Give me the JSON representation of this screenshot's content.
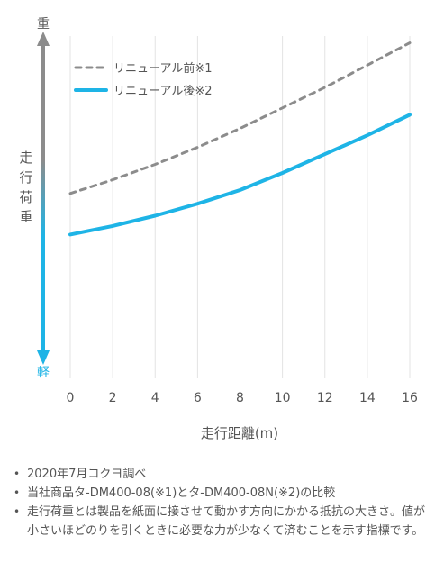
{
  "chart_data": {
    "type": "line",
    "x": [
      0,
      2,
      4,
      6,
      8,
      10,
      12,
      14,
      16
    ],
    "xlim": [
      0,
      16
    ],
    "x_ticks": [
      "0",
      "2",
      "4",
      "6",
      "8",
      "10",
      "12",
      "14",
      "16"
    ],
    "xlabel": "走行距離(m)",
    "ylabel": "走行荷重",
    "y_top_label": "重",
    "y_bottom_label": "軽",
    "y_axis_tick_labels_shown": false,
    "ylim": [
      0,
      100
    ],
    "grid": "vertical",
    "legend_position": "top-left",
    "series": [
      {
        "name": "リニューアル前※1",
        "style": "dashed",
        "color": "#8c8c8c",
        "values": [
          54,
          58,
          62.5,
          67.5,
          73,
          79,
          85,
          91.5,
          98
        ]
      },
      {
        "name": "リニューアル後※2",
        "style": "solid",
        "color": "#1eb4e6",
        "values": [
          42,
          44.5,
          47.5,
          51,
          55,
          60,
          65.5,
          71,
          77
        ]
      }
    ]
  },
  "colors": {
    "axis_arrow_top": "#8c8c8c",
    "axis_arrow_bottom": "#1eb4e6",
    "grid": "#e3e3e3",
    "text": "#555555"
  },
  "notes": [
    "2020年7月コクヨ調べ",
    "当社商品タ-DM400-08(※1)とタ-DM400-08N(※2)の比較",
    "走行荷重とは製品を紙面に接させて動かす方向にかかる抵抗の大きさ。値が小さいほどのりを引くときに必要な力が少なくて済むことを示す指標です。"
  ]
}
